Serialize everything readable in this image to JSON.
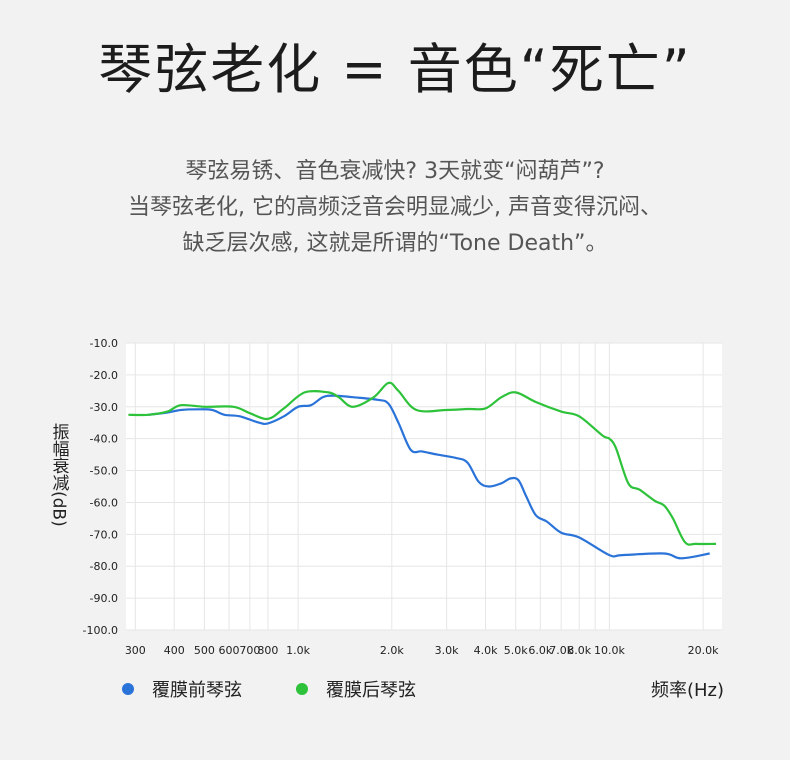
{
  "title": "琴弦老化 = 音色“死亡”",
  "description": [
    "琴弦易锈、音色衰减快? 3天就变“闷葫芦”?",
    "当琴弦老化, 它的高频泛音会明显减少, 声音变得沉闷、",
    "缺乏层次感, 这就是所谓的“Tone Death”。"
  ],
  "colors": {
    "blue": "#2a73d9",
    "green": "#2ec23a",
    "grid": "#e6e6e6",
    "plot_bg": "#ffffff"
  },
  "chart_data": {
    "type": "line",
    "xscale": "log",
    "xlim": [
      280,
      23000
    ],
    "ylim": [
      -100,
      -10
    ],
    "xlabel": "频率(Hz)",
    "ylabel": "振幅衰减(dB)",
    "grid": true,
    "legend_position": "bottom-left",
    "y_ticks": [
      {
        "value": -10,
        "label": "-10.0"
      },
      {
        "value": -20,
        "label": "-20.0"
      },
      {
        "value": -30,
        "label": "-30.0"
      },
      {
        "value": -40,
        "label": "-40.0"
      },
      {
        "value": -50,
        "label": "-50.0"
      },
      {
        "value": -60,
        "label": "-60.0"
      },
      {
        "value": -70,
        "label": "-70.0"
      },
      {
        "value": -80,
        "label": "-80.0"
      },
      {
        "value": -90,
        "label": "-90.0"
      },
      {
        "value": -100,
        "label": "-100.0"
      }
    ],
    "x_ticks": [
      {
        "value": 300,
        "label": "300"
      },
      {
        "value": 400,
        "label": "400"
      },
      {
        "value": 500,
        "label": "500"
      },
      {
        "value": 600,
        "label": "600"
      },
      {
        "value": 700,
        "label": "700"
      },
      {
        "value": 800,
        "label": "800"
      },
      {
        "value": 1000,
        "label": "1.0k"
      },
      {
        "value": 2000,
        "label": "2.0k"
      },
      {
        "value": 3000,
        "label": "3.0k"
      },
      {
        "value": 4000,
        "label": "4.0k"
      },
      {
        "value": 5000,
        "label": "5.0k"
      },
      {
        "value": 6000,
        "label": "6.0k"
      },
      {
        "value": 7000,
        "label": "7.0k"
      },
      {
        "value": 8000,
        "label": "8.0k"
      },
      {
        "value": 10000,
        "label": "10.0k"
      },
      {
        "value": 20000,
        "label": "20.0k"
      }
    ],
    "minor_x_gridlines": [
      9000,
      30000
    ],
    "series": [
      {
        "name": "覆膜前琴弦",
        "color": "#2a73d9",
        "x": [
          330,
          380,
          420,
          480,
          530,
          580,
          650,
          750,
          800,
          900,
          1000,
          1100,
          1200,
          1300,
          1500,
          1800,
          1950,
          2100,
          2300,
          2500,
          2800,
          3200,
          3500,
          3800,
          4100,
          4500,
          4800,
          5100,
          5400,
          5800,
          6300,
          7000,
          8000,
          10000,
          11000,
          15000,
          17000,
          21000
        ],
        "y": [
          -32.5,
          -31.8,
          -31,
          -30.8,
          -31,
          -32.5,
          -33,
          -35,
          -35.2,
          -33,
          -30,
          -29.5,
          -27,
          -26.5,
          -27,
          -27.8,
          -29,
          -35,
          -43.5,
          -44,
          -45,
          -46,
          -47.5,
          -53.5,
          -55,
          -54,
          -52.5,
          -53,
          -58,
          -64,
          -66,
          -69.5,
          -71,
          -76.5,
          -76.5,
          -76,
          -77.5,
          -76
        ]
      },
      {
        "name": "覆膜后琴弦",
        "color": "#2ec23a",
        "x": [
          285,
          330,
          380,
          420,
          500,
          620,
          700,
          800,
          900,
          1050,
          1250,
          1350,
          1500,
          1750,
          1950,
          2100,
          2400,
          3000,
          3500,
          4000,
          4500,
          5000,
          5800,
          7000,
          8000,
          9500,
          10000,
          10500,
          11500,
          12500,
          14000,
          15000,
          16000,
          17500,
          19000,
          22000
        ],
        "y": [
          -32.5,
          -32.5,
          -31.5,
          -29.5,
          -30,
          -30,
          -32,
          -33.8,
          -30.5,
          -25.5,
          -25.5,
          -27,
          -30,
          -27,
          -22.5,
          -25,
          -31,
          -31,
          -30.7,
          -30.5,
          -27,
          -25.5,
          -28.5,
          -31.5,
          -33,
          -39,
          -40,
          -43,
          -54,
          -56,
          -59.5,
          -61,
          -65,
          -72.5,
          -73,
          -73
        ]
      }
    ]
  }
}
